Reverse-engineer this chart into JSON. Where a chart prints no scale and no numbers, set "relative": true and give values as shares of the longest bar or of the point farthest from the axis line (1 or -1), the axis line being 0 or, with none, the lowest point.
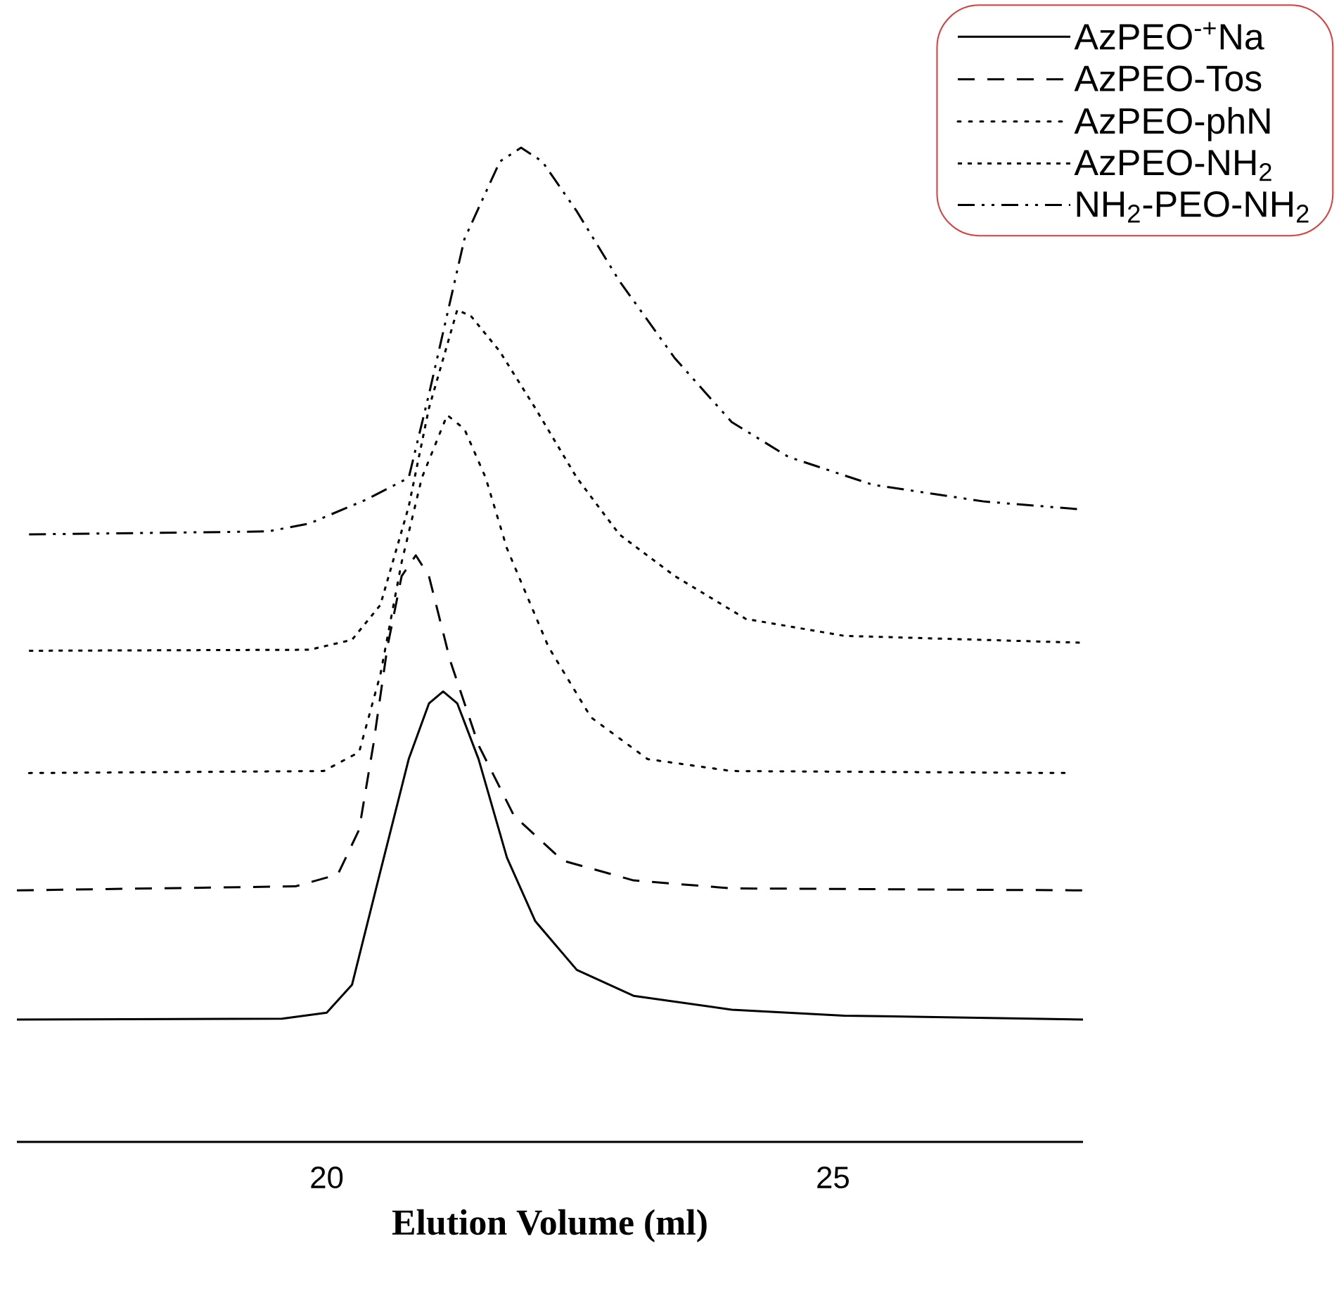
{
  "chart_data": {
    "type": "line",
    "xlabel": "Elution Volume (ml)",
    "xlim": [
      16.94,
      27.47
    ],
    "xticks": [
      20,
      25
    ],
    "relative": true,
    "legend": "top right",
    "grid": false,
    "marker": "none",
    "series": [
      {
        "name": "AzPEO$^{-+}$Na",
        "color": "#000000",
        "line_style": "solid",
        "x": [
          16.94,
          19.56,
          20.0,
          20.25,
          20.53,
          20.81,
          21.01,
          21.15,
          21.29,
          21.5,
          21.78,
          22.06,
          22.47,
          23.03,
          24.0,
          25.11,
          27.47
        ],
        "values": [
          0.123,
          0.124,
          0.13,
          0.158,
          0.272,
          0.385,
          0.441,
          0.453,
          0.441,
          0.385,
          0.286,
          0.222,
          0.173,
          0.147,
          0.133,
          0.127,
          0.123
        ]
      },
      {
        "name": "AzPEO-Tos",
        "color": "#000000",
        "line_style": "dashed",
        "x": [
          16.94,
          19.69,
          20.11,
          20.32,
          20.46,
          20.6,
          20.74,
          20.88,
          21.01,
          21.22,
          21.5,
          21.85,
          22.33,
          23.03,
          24.0,
          27.47
        ],
        "values": [
          0.253,
          0.257,
          0.269,
          0.314,
          0.399,
          0.498,
          0.569,
          0.59,
          0.569,
          0.484,
          0.399,
          0.328,
          0.283,
          0.263,
          0.255,
          0.253
        ]
      },
      {
        "name": "AzPEO-phN",
        "color": "#000000",
        "line_style": "dotted",
        "x": [
          17.06,
          19.97,
          20.32,
          20.53,
          20.74,
          20.94,
          21.19,
          21.36,
          21.57,
          21.78,
          22.19,
          22.61,
          23.17,
          24.0,
          27.33
        ],
        "values": [
          0.371,
          0.373,
          0.392,
          0.47,
          0.583,
          0.668,
          0.731,
          0.717,
          0.668,
          0.597,
          0.498,
          0.427,
          0.385,
          0.373,
          0.371
        ]
      },
      {
        "name": "AzPEO-NH$_{2}$",
        "color": "#000000",
        "line_style": "densely dotted",
        "x": [
          17.06,
          19.83,
          20.25,
          20.53,
          20.81,
          21.01,
          21.29,
          21.43,
          21.71,
          22.06,
          22.47,
          22.89,
          23.44,
          24.14,
          25.11,
          27.47
        ],
        "values": [
          0.494,
          0.495,
          0.505,
          0.54,
          0.639,
          0.738,
          0.837,
          0.83,
          0.795,
          0.738,
          0.668,
          0.611,
          0.569,
          0.526,
          0.509,
          0.502
        ]
      },
      {
        "name": "NH$_{2}$-PEO-NH$_{2}$",
        "color": "#000000",
        "line_style": "dashdotted",
        "x": [
          17.06,
          19.42,
          19.83,
          20.39,
          20.81,
          21.01,
          21.36,
          21.71,
          21.92,
          22.13,
          22.47,
          22.89,
          23.44,
          24.0,
          24.56,
          25.39,
          26.5,
          27.47
        ],
        "values": [
          0.611,
          0.614,
          0.622,
          0.646,
          0.668,
          0.752,
          0.908,
          0.986,
          1.0,
          0.986,
          0.936,
          0.866,
          0.788,
          0.724,
          0.689,
          0.661,
          0.644,
          0.636
        ]
      }
    ]
  }
}
